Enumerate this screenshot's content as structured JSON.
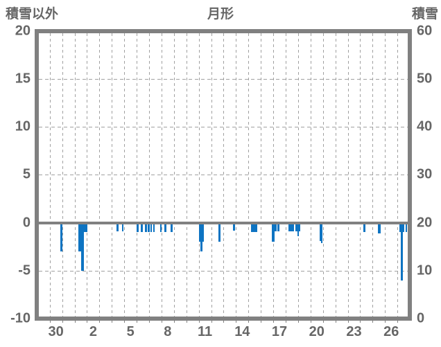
{
  "header": {
    "left_axis_title": "積雪以外",
    "station_title": "月形",
    "right_axis_title": "積雪"
  },
  "chart_data": {
    "type": "bar",
    "title": "月形",
    "subtitle": "",
    "left_axis": {
      "label": "積雪以外",
      "ticks": [
        20,
        15,
        10,
        5,
        0,
        -5,
        -10
      ],
      "range": [
        -10,
        20
      ]
    },
    "right_axis": {
      "label": "積雪",
      "ticks": [
        60,
        50,
        40,
        30,
        20,
        10,
        0
      ],
      "range": [
        0,
        60
      ]
    },
    "x_axis": {
      "unit": "day",
      "n_day_cells": 30,
      "tick_labels": [
        {
          "label": "30",
          "cell": 1
        },
        {
          "label": "2",
          "cell": 4
        },
        {
          "label": "5",
          "cell": 7
        },
        {
          "label": "8",
          "cell": 10
        },
        {
          "label": "11",
          "cell": 13
        },
        {
          "label": "14",
          "cell": 16
        },
        {
          "label": "17",
          "cell": 19
        },
        {
          "label": "20",
          "cell": 22
        },
        {
          "label": "23",
          "cell": 25
        },
        {
          "label": "26",
          "cell": 28
        }
      ]
    },
    "grid": {
      "h_dashed_values": [
        15,
        10,
        5,
        -5
      ],
      "v_dashed_every_day": true,
      "zero_line": true
    },
    "bars": [
      {
        "d1": 1.84,
        "d2": 2.03,
        "v": -3.0
      },
      {
        "d1": 3.32,
        "d2": 3.51,
        "v": -3.0
      },
      {
        "d1": 3.51,
        "d2": 3.74,
        "v": -5.0
      },
      {
        "d1": 3.74,
        "d2": 4.01,
        "v": -1.0
      },
      {
        "d1": 6.39,
        "d2": 6.53,
        "v": -0.9
      },
      {
        "d1": 6.82,
        "d2": 6.95,
        "v": -0.9
      },
      {
        "d1": 8.01,
        "d2": 8.16,
        "v": -1.0
      },
      {
        "d1": 8.35,
        "d2": 8.5,
        "v": -1.0
      },
      {
        "d1": 8.68,
        "d2": 8.83,
        "v": -1.0
      },
      {
        "d1": 8.91,
        "d2": 9.04,
        "v": -1.0
      },
      {
        "d1": 9.13,
        "d2": 9.24,
        "v": -1.0
      },
      {
        "d1": 9.32,
        "d2": 9.39,
        "v": -1.0
      },
      {
        "d1": 9.88,
        "d2": 10.02,
        "v": -1.0
      },
      {
        "d1": 10.25,
        "d2": 10.4,
        "v": -1.0
      },
      {
        "d1": 10.73,
        "d2": 10.88,
        "v": -1.0
      },
      {
        "d1": 13.04,
        "d2": 13.13,
        "v": -2.0
      },
      {
        "d1": 13.13,
        "d2": 13.32,
        "v": -3.0
      },
      {
        "d1": 13.32,
        "d2": 13.36,
        "v": -2.0
      },
      {
        "d1": 14.57,
        "d2": 14.73,
        "v": -2.0
      },
      {
        "d1": 15.77,
        "d2": 15.93,
        "v": -0.8
      },
      {
        "d1": 17.22,
        "d2": 17.73,
        "v": -1.0
      },
      {
        "d1": 18.88,
        "d2": 19.09,
        "v": -2.0
      },
      {
        "d1": 19.12,
        "d2": 19.29,
        "v": -0.9
      },
      {
        "d1": 19.35,
        "d2": 19.51,
        "v": -0.9
      },
      {
        "d1": 20.24,
        "d2": 20.43,
        "v": -0.9
      },
      {
        "d1": 20.47,
        "d2": 20.65,
        "v": -0.9
      },
      {
        "d1": 20.8,
        "d2": 20.97,
        "v": -0.9
      },
      {
        "d1": 20.97,
        "d2": 21.03,
        "v": -1.4
      },
      {
        "d1": 21.06,
        "d2": 21.17,
        "v": -0.9
      },
      {
        "d1": 22.73,
        "d2": 22.83,
        "v": -1.9
      },
      {
        "d1": 22.83,
        "d2": 22.9,
        "v": -2.1
      },
      {
        "d1": 26.25,
        "d2": 26.42,
        "v": -1.0
      },
      {
        "d1": 27.42,
        "d2": 27.63,
        "v": -1.1
      },
      {
        "d1": 29.16,
        "d2": 29.29,
        "v": -1.0
      },
      {
        "d1": 29.29,
        "d2": 29.45,
        "v": -6.0
      },
      {
        "d1": 29.45,
        "d2": 29.56,
        "v": -1.0
      },
      {
        "d1": 29.67,
        "d2": 29.78,
        "v": -1.0
      }
    ],
    "colors": {
      "bar": "#0e74c2",
      "frame": "#808080",
      "zero_line": "#808080",
      "grid": "#a0a0a0",
      "text": "#666666",
      "background": "#ffffff"
    }
  }
}
